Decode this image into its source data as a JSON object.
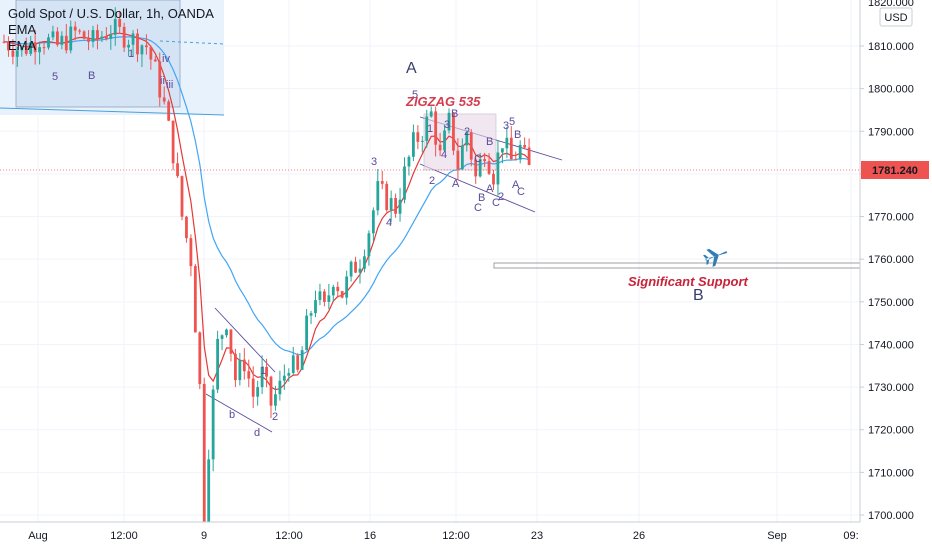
{
  "legend": {
    "symbol": "Gold Spot / U.S. Dollar, 1h, OANDA",
    "ema1": "EMA",
    "ema2": "EMA"
  },
  "currency_badge": "USD",
  "price_badge": "1781.240",
  "colors": {
    "up": "#26a69a",
    "down": "#ef5350",
    "ema_fast": "#e53935",
    "ema_slow": "#42a5f5",
    "channel": "#5b4a9b",
    "price_line": "#ef5350",
    "support_text": "#c7243a",
    "plane": "#2f7fb5"
  },
  "annotations": {
    "zigzag": "ZIGZAG 535",
    "support": "Significant Support",
    "big_a": "A",
    "big_b": "B",
    "waves": [
      "5",
      "B",
      "1",
      "iv",
      "ii",
      "iii",
      "1",
      "2",
      "b",
      "d",
      "3",
      "4",
      "5",
      "2",
      "1",
      "3",
      "4",
      "A",
      "B",
      "C",
      "C",
      "B",
      "A",
      "C",
      "2",
      "3",
      "5",
      "B",
      "A",
      "C",
      "B",
      "2"
    ]
  },
  "chart_data": {
    "type": "candlestick",
    "title": "Gold Spot / U.S. Dollar, 1h, OANDA",
    "y_ticks": [
      "1810.000",
      "1800.000",
      "1790.000",
      "1780.000",
      "1770.000",
      "1760.000",
      "1750.000",
      "1740.000",
      "1730.000",
      "1720.000",
      "1710.000",
      "1700.000"
    ],
    "y_tick_values": [
      1810,
      1800,
      1790,
      1780,
      1770,
      1760,
      1750,
      1740,
      1730,
      1720,
      1710,
      1700
    ],
    "ylim": [
      1698.5,
      1821
    ],
    "x_ticks": [
      "Aug",
      "12:00",
      "9",
      "12:00",
      "16",
      "12:00",
      "23",
      "26",
      "Sep",
      "09:"
    ],
    "last_price": 1781.24,
    "support_zone": [
      1758,
      1759
    ],
    "series": [
      {
        "name": "EMA",
        "kind": "ema-fast"
      },
      {
        "name": "EMA",
        "kind": "ema-slow"
      }
    ],
    "price_path": [
      [
        0,
        1811
      ],
      [
        4,
        1809
      ],
      [
        8,
        1812
      ],
      [
        12,
        1810
      ],
      [
        16,
        1813
      ],
      [
        20,
        1811
      ],
      [
        24,
        1814
      ],
      [
        28,
        1812
      ],
      [
        32,
        1810
      ],
      [
        34,
        1804
      ],
      [
        36,
        1796
      ],
      [
        38,
        1785
      ],
      [
        40,
        1770
      ],
      [
        42,
        1760
      ],
      [
        44,
        1730
      ],
      [
        45,
        1700
      ],
      [
        46,
        1716
      ],
      [
        48,
        1740
      ],
      [
        50,
        1746
      ],
      [
        52,
        1732
      ],
      [
        54,
        1736
      ],
      [
        56,
        1728
      ],
      [
        58,
        1733
      ],
      [
        60,
        1726
      ],
      [
        62,
        1730
      ],
      [
        64,
        1736
      ],
      [
        66,
        1733
      ],
      [
        68,
        1744
      ],
      [
        70,
        1752
      ],
      [
        72,
        1748
      ],
      [
        74,
        1756
      ],
      [
        76,
        1752
      ],
      [
        78,
        1757
      ],
      [
        80,
        1760
      ],
      [
        82,
        1767
      ],
      [
        84,
        1776
      ],
      [
        86,
        1774
      ],
      [
        88,
        1772
      ],
      [
        90,
        1780
      ],
      [
        92,
        1787
      ],
      [
        94,
        1790
      ],
      [
        96,
        1794
      ],
      [
        98,
        1784
      ],
      [
        100,
        1792
      ],
      [
        102,
        1782
      ],
      [
        104,
        1790
      ],
      [
        106,
        1779
      ],
      [
        108,
        1786
      ],
      [
        110,
        1780
      ],
      [
        112,
        1788
      ],
      [
        114,
        1783
      ],
      [
        116,
        1786
      ],
      [
        118,
        1781
      ]
    ]
  }
}
